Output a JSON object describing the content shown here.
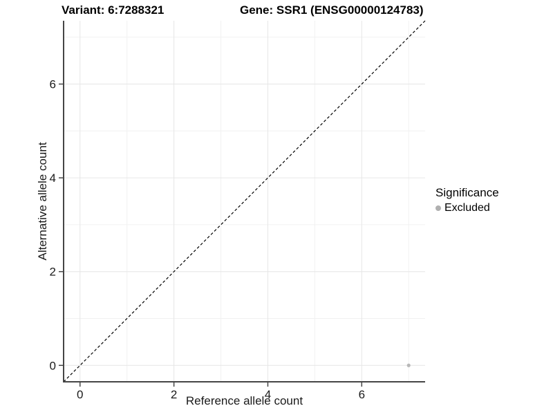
{
  "titles": {
    "variant": "Variant: 6:7288321",
    "gene": "Gene: SSR1 (ENSG00000124783)"
  },
  "chart_data": {
    "type": "scatter",
    "title": "Variant: 6:7288321  /  Gene: SSR1 (ENSG00000124783)",
    "xlabel": "Reference allele count",
    "ylabel": "Alternative allele count",
    "xlim": [
      -0.35,
      7.35
    ],
    "ylim": [
      -0.35,
      7.35
    ],
    "x_ticks": [
      0,
      2,
      4,
      6
    ],
    "y_ticks": [
      0,
      2,
      4,
      6
    ],
    "x_minor_ticks": [
      1,
      3,
      5,
      7
    ],
    "y_minor_ticks": [
      1,
      3,
      5,
      7
    ],
    "grid": true,
    "points": [
      {
        "x": 7,
        "y": 0,
        "significance": "Excluded"
      }
    ],
    "identity_line": {
      "style": "dashed",
      "from": [
        -0.35,
        -0.35
      ],
      "to": [
        7.35,
        7.35
      ],
      "color": "#000000"
    },
    "legend": {
      "position": "right",
      "title": "Significance",
      "items": [
        {
          "label": "Excluded",
          "color": "#b0b0b0"
        }
      ]
    },
    "colors": {
      "point": "#b8b8b8",
      "grid_major": "#e6e6e6",
      "grid_minor": "#f1f1f1",
      "axis": "#454545",
      "tick_label": "#1a1a1a"
    }
  }
}
